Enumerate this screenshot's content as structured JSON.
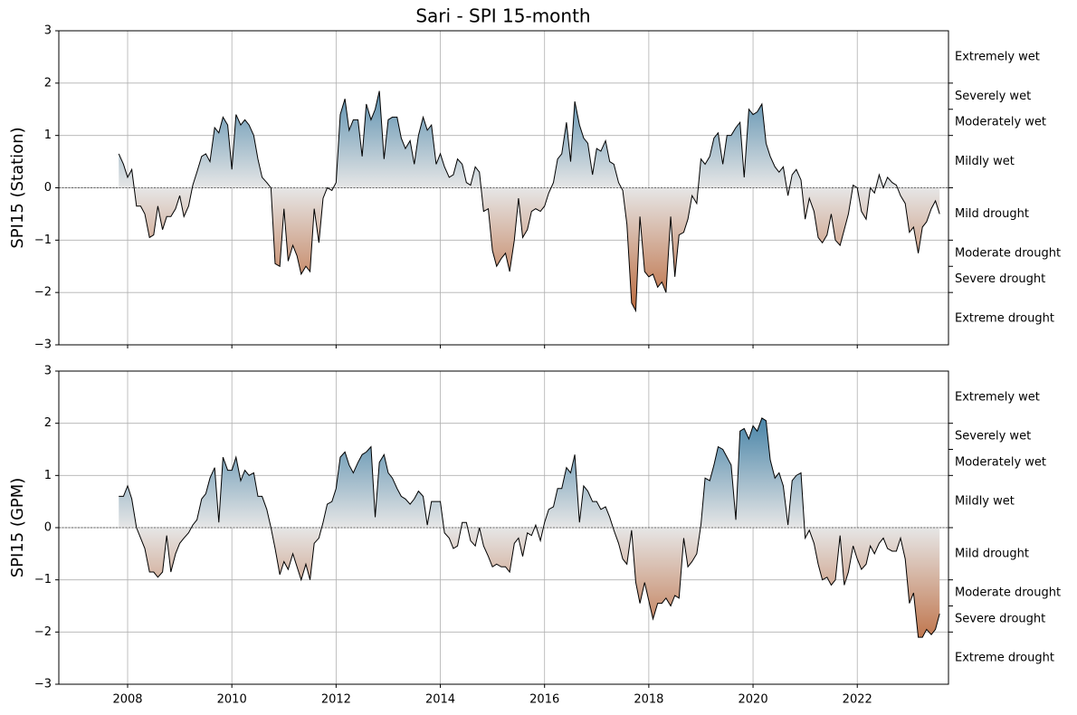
{
  "title": "Sari - SPI 15-month",
  "chart_data": [
    {
      "type": "area",
      "ylabel": "SPI15 (Station)",
      "show_xtick_labels": false,
      "positive_color": "#045a8d",
      "negative_color": "#b0480f",
      "neutral_color": "#e6e6e6",
      "line_color": "#000000",
      "grid": true,
      "xlim": [
        2006.68,
        2023.75
      ],
      "xticks": [
        2008,
        2010,
        2012,
        2014,
        2016,
        2018,
        2020,
        2022
      ],
      "ylim": [
        -3,
        3
      ],
      "yticks": [
        {
          "value": -3,
          "label": "−3"
        },
        {
          "value": -2,
          "label": "−2"
        },
        {
          "value": -1,
          "label": "−1"
        },
        0,
        1,
        2,
        3
      ],
      "classes": [
        {
          "label": "Extremely wet",
          "range": [
            2,
            3
          ]
        },
        {
          "label": "Severely wet",
          "range": [
            1.5,
            2
          ]
        },
        {
          "label": "Moderately wet",
          "range": [
            1,
            1.5
          ]
        },
        {
          "label": "Mildly wet",
          "range": [
            0,
            1
          ]
        },
        {
          "label": "Mild drought",
          "range": [
            -1,
            0
          ]
        },
        {
          "label": "Moderate drought",
          "range": [
            -1.5,
            -1
          ]
        },
        {
          "label": "Severe drought",
          "range": [
            -2,
            -1.5
          ]
        },
        {
          "label": "Extreme drought",
          "range": [
            -3,
            -2
          ]
        }
      ],
      "x": [
        2007.83,
        2007.92,
        2008,
        2008.08,
        2008.17,
        2008.25,
        2008.33,
        2008.42,
        2008.5,
        2008.58,
        2008.67,
        2008.75,
        2008.83,
        2008.92,
        2009,
        2009.08,
        2009.17,
        2009.25,
        2009.33,
        2009.42,
        2009.5,
        2009.58,
        2009.67,
        2009.75,
        2009.83,
        2009.92,
        2010,
        2010.08,
        2010.17,
        2010.25,
        2010.33,
        2010.42,
        2010.5,
        2010.58,
        2010.67,
        2010.75,
        2010.83,
        2010.92,
        2011,
        2011.08,
        2011.17,
        2011.25,
        2011.33,
        2011.42,
        2011.5,
        2011.58,
        2011.67,
        2011.75,
        2011.83,
        2011.92,
        2012,
        2012.08,
        2012.17,
        2012.25,
        2012.33,
        2012.42,
        2012.5,
        2012.58,
        2012.67,
        2012.75,
        2012.83,
        2012.92,
        2013,
        2013.08,
        2013.17,
        2013.25,
        2013.33,
        2013.42,
        2013.5,
        2013.58,
        2013.67,
        2013.75,
        2013.83,
        2013.92,
        2014,
        2014.08,
        2014.17,
        2014.25,
        2014.33,
        2014.42,
        2014.5,
        2014.58,
        2014.67,
        2014.75,
        2014.83,
        2014.92,
        2015,
        2015.08,
        2015.17,
        2015.25,
        2015.33,
        2015.42,
        2015.5,
        2015.58,
        2015.67,
        2015.75,
        2015.83,
        2015.92,
        2016,
        2016.08,
        2016.17,
        2016.25,
        2016.33,
        2016.42,
        2016.5,
        2016.58,
        2016.67,
        2016.75,
        2016.83,
        2016.92,
        2017,
        2017.08,
        2017.17,
        2017.25,
        2017.33,
        2017.42,
        2017.5,
        2017.58,
        2017.67,
        2017.75,
        2017.83,
        2017.92,
        2018,
        2018.08,
        2018.17,
        2018.25,
        2018.33,
        2018.42,
        2018.5,
        2018.58,
        2018.67,
        2018.75,
        2018.83,
        2018.92,
        2019,
        2019.08,
        2019.17,
        2019.25,
        2019.33,
        2019.42,
        2019.5,
        2019.58,
        2019.67,
        2019.75,
        2019.83,
        2019.92,
        2020,
        2020.08,
        2020.17,
        2020.25,
        2020.33,
        2020.42,
        2020.5,
        2020.58,
        2020.67,
        2020.75,
        2020.83,
        2020.92,
        2021,
        2021.08,
        2021.17,
        2021.25,
        2021.33,
        2021.42,
        2021.5,
        2021.58,
        2021.67,
        2021.75,
        2021.83,
        2021.92,
        2022,
        2022.08,
        2022.17,
        2022.25,
        2022.33,
        2022.42,
        2022.5,
        2022.58,
        2022.67,
        2022.75,
        2022.83,
        2022.92,
        2023,
        2023.08,
        2023.17,
        2023.25,
        2023.33,
        2023.42,
        2023.5,
        2023.58
      ],
      "values": [
        0.65,
        0.45,
        0.2,
        0.35,
        -0.35,
        -0.35,
        -0.5,
        -0.95,
        -0.9,
        -0.35,
        -0.8,
        -0.55,
        -0.55,
        -0.4,
        -0.15,
        -0.55,
        -0.35,
        0.05,
        0.3,
        0.6,
        0.65,
        0.5,
        1.15,
        1.05,
        1.35,
        1.2,
        0.35,
        1.4,
        1.2,
        1.3,
        1.2,
        1.0,
        0.55,
        0.2,
        0.1,
        0.0,
        -1.45,
        -1.5,
        -0.4,
        -1.4,
        -1.1,
        -1.3,
        -1.65,
        -1.5,
        -1.6,
        -0.4,
        -1.05,
        -0.2,
        0.0,
        -0.05,
        0.1,
        1.4,
        1.7,
        1.1,
        1.3,
        1.3,
        0.6,
        1.6,
        1.3,
        1.5,
        1.85,
        0.55,
        1.3,
        1.35,
        1.35,
        0.95,
        0.75,
        0.9,
        0.45,
        1.0,
        1.35,
        1.1,
        1.2,
        0.45,
        0.65,
        0.4,
        0.2,
        0.25,
        0.55,
        0.45,
        0.1,
        0.05,
        0.4,
        0.3,
        -0.45,
        -0.4,
        -1.2,
        -1.5,
        -1.35,
        -1.25,
        -1.6,
        -1.0,
        -0.2,
        -0.95,
        -0.8,
        -0.45,
        -0.4,
        -0.45,
        -0.35,
        -0.1,
        0.1,
        0.55,
        0.65,
        1.25,
        0.5,
        1.65,
        1.2,
        0.95,
        0.85,
        0.25,
        0.75,
        0.7,
        0.9,
        0.5,
        0.45,
        0.1,
        -0.05,
        -0.7,
        -2.2,
        -2.35,
        -0.55,
        -1.6,
        -1.7,
        -1.65,
        -1.9,
        -1.8,
        -2.0,
        -0.55,
        -1.7,
        -0.9,
        -0.85,
        -0.6,
        -0.15,
        -0.3,
        0.55,
        0.45,
        0.6,
        0.95,
        1.05,
        0.45,
        1.0,
        1.0,
        1.15,
        1.25,
        0.2,
        1.5,
        1.4,
        1.45,
        1.6,
        0.85,
        0.6,
        0.4,
        0.3,
        0.4,
        -0.15,
        0.25,
        0.35,
        0.15,
        -0.6,
        -0.2,
        -0.45,
        -0.95,
        -1.05,
        -0.9,
        -0.5,
        -1.0,
        -1.1,
        -0.8,
        -0.5,
        0.05,
        0.0,
        -0.45,
        -0.6,
        0.0,
        -0.1,
        0.25,
        0.0,
        0.2,
        0.1,
        0.05,
        -0.15,
        -0.3,
        -0.85,
        -0.75,
        -1.25,
        -0.75,
        -0.65,
        -0.4,
        -0.25,
        -0.5
      ]
    },
    {
      "type": "area",
      "ylabel": "SPI15 (GPM)",
      "show_xtick_labels": true,
      "positive_color": "#045a8d",
      "negative_color": "#b0480f",
      "neutral_color": "#e6e6e6",
      "line_color": "#000000",
      "grid": true,
      "xlim": [
        2006.68,
        2023.75
      ],
      "xticks": [
        2008,
        2010,
        2012,
        2014,
        2016,
        2018,
        2020,
        2022
      ],
      "ylim": [
        -3,
        3
      ],
      "yticks": [
        {
          "value": -3,
          "label": "−3"
        },
        {
          "value": -2,
          "label": "−2"
        },
        {
          "value": -1,
          "label": "−1"
        },
        0,
        1,
        2,
        3
      ],
      "classes": [
        {
          "label": "Extremely wet",
          "range": [
            2,
            3
          ]
        },
        {
          "label": "Severely wet",
          "range": [
            1.5,
            2
          ]
        },
        {
          "label": "Moderately wet",
          "range": [
            1,
            1.5
          ]
        },
        {
          "label": "Mildly wet",
          "range": [
            0,
            1
          ]
        },
        {
          "label": "Mild drought",
          "range": [
            -1,
            0
          ]
        },
        {
          "label": "Moderate drought",
          "range": [
            -1.5,
            -1
          ]
        },
        {
          "label": "Severe drought",
          "range": [
            -2,
            -1.5
          ]
        },
        {
          "label": "Extreme drought",
          "range": [
            -3,
            -2
          ]
        }
      ],
      "x": [
        2007.83,
        2007.92,
        2008,
        2008.08,
        2008.17,
        2008.25,
        2008.33,
        2008.42,
        2008.5,
        2008.58,
        2008.67,
        2008.75,
        2008.83,
        2008.92,
        2009,
        2009.08,
        2009.17,
        2009.25,
        2009.33,
        2009.42,
        2009.5,
        2009.58,
        2009.67,
        2009.75,
        2009.83,
        2009.92,
        2010,
        2010.08,
        2010.17,
        2010.25,
        2010.33,
        2010.42,
        2010.5,
        2010.58,
        2010.67,
        2010.75,
        2010.83,
        2010.92,
        2011,
        2011.08,
        2011.17,
        2011.25,
        2011.33,
        2011.42,
        2011.5,
        2011.58,
        2011.67,
        2011.75,
        2011.83,
        2011.92,
        2012,
        2012.08,
        2012.17,
        2012.25,
        2012.33,
        2012.42,
        2012.5,
        2012.58,
        2012.67,
        2012.75,
        2012.83,
        2012.92,
        2013,
        2013.08,
        2013.17,
        2013.25,
        2013.33,
        2013.42,
        2013.5,
        2013.58,
        2013.67,
        2013.75,
        2013.83,
        2013.92,
        2014,
        2014.08,
        2014.17,
        2014.25,
        2014.33,
        2014.42,
        2014.5,
        2014.58,
        2014.67,
        2014.75,
        2014.83,
        2014.92,
        2015,
        2015.08,
        2015.17,
        2015.25,
        2015.33,
        2015.42,
        2015.5,
        2015.58,
        2015.67,
        2015.75,
        2015.83,
        2015.92,
        2016,
        2016.08,
        2016.17,
        2016.25,
        2016.33,
        2016.42,
        2016.5,
        2016.58,
        2016.67,
        2016.75,
        2016.83,
        2016.92,
        2017,
        2017.08,
        2017.17,
        2017.25,
        2017.33,
        2017.42,
        2017.5,
        2017.58,
        2017.67,
        2017.75,
        2017.83,
        2017.92,
        2018,
        2018.08,
        2018.17,
        2018.25,
        2018.33,
        2018.42,
        2018.5,
        2018.58,
        2018.67,
        2018.75,
        2018.83,
        2018.92,
        2019,
        2019.08,
        2019.17,
        2019.25,
        2019.33,
        2019.42,
        2019.5,
        2019.58,
        2019.67,
        2019.75,
        2019.83,
        2019.92,
        2020,
        2020.08,
        2020.17,
        2020.25,
        2020.33,
        2020.42,
        2020.5,
        2020.58,
        2020.67,
        2020.75,
        2020.83,
        2020.92,
        2021,
        2021.08,
        2021.17,
        2021.25,
        2021.33,
        2021.42,
        2021.5,
        2021.58,
        2021.67,
        2021.75,
        2021.83,
        2021.92,
        2022,
        2022.08,
        2022.17,
        2022.25,
        2022.33,
        2022.42,
        2022.5,
        2022.58,
        2022.67,
        2022.75,
        2022.83,
        2022.92,
        2023,
        2023.08,
        2023.17,
        2023.25,
        2023.33,
        2023.42,
        2023.5,
        2023.58
      ],
      "values": [
        0.6,
        0.6,
        0.8,
        0.55,
        0.0,
        -0.2,
        -0.4,
        -0.85,
        -0.85,
        -0.95,
        -0.85,
        -0.15,
        -0.85,
        -0.5,
        -0.3,
        -0.2,
        -0.1,
        0.05,
        0.15,
        0.55,
        0.65,
        0.95,
        1.15,
        0.1,
        1.35,
        1.1,
        1.1,
        1.35,
        0.9,
        1.1,
        1.0,
        1.05,
        0.6,
        0.6,
        0.35,
        0.0,
        -0.4,
        -0.9,
        -0.65,
        -0.8,
        -0.5,
        -0.75,
        -1.0,
        -0.7,
        -1.0,
        -0.3,
        -0.2,
        0.1,
        0.45,
        0.5,
        0.75,
        1.35,
        1.45,
        1.2,
        1.05,
        1.25,
        1.4,
        1.45,
        1.55,
        0.2,
        1.25,
        1.4,
        1.05,
        0.95,
        0.75,
        0.6,
        0.55,
        0.45,
        0.55,
        0.7,
        0.6,
        0.05,
        0.5,
        0.5,
        0.5,
        -0.1,
        -0.2,
        -0.4,
        -0.35,
        0.1,
        0.1,
        -0.25,
        -0.35,
        0.0,
        -0.35,
        -0.55,
        -0.75,
        -0.7,
        -0.75,
        -0.75,
        -0.85,
        -0.3,
        -0.2,
        -0.55,
        -0.1,
        -0.15,
        0.05,
        -0.25,
        0.1,
        0.35,
        0.4,
        0.75,
        0.75,
        1.15,
        1.05,
        1.4,
        0.1,
        0.8,
        0.7,
        0.5,
        0.5,
        0.35,
        0.4,
        0.2,
        -0.05,
        -0.3,
        -0.6,
        -0.7,
        -0.05,
        -1.05,
        -1.45,
        -1.05,
        -1.4,
        -1.75,
        -1.45,
        -1.45,
        -1.35,
        -1.5,
        -1.3,
        -1.35,
        -0.2,
        -0.75,
        -0.65,
        -0.5,
        0.05,
        0.95,
        0.9,
        1.2,
        1.55,
        1.5,
        1.35,
        1.2,
        0.15,
        1.85,
        1.9,
        1.7,
        1.95,
        1.85,
        2.1,
        2.05,
        1.3,
        0.95,
        1.05,
        0.8,
        0.05,
        0.9,
        1.0,
        1.05,
        -0.2,
        -0.05,
        -0.3,
        -0.7,
        -1.0,
        -0.95,
        -1.1,
        -1.0,
        -0.15,
        -1.1,
        -0.85,
        -0.35,
        -0.6,
        -0.8,
        -0.7,
        -0.35,
        -0.5,
        -0.3,
        -0.2,
        -0.4,
        -0.45,
        -0.45,
        -0.2,
        -0.6,
        -1.45,
        -1.25,
        -2.1,
        -2.1,
        -1.95,
        -2.05,
        -1.95,
        -1.65
      ]
    }
  ]
}
